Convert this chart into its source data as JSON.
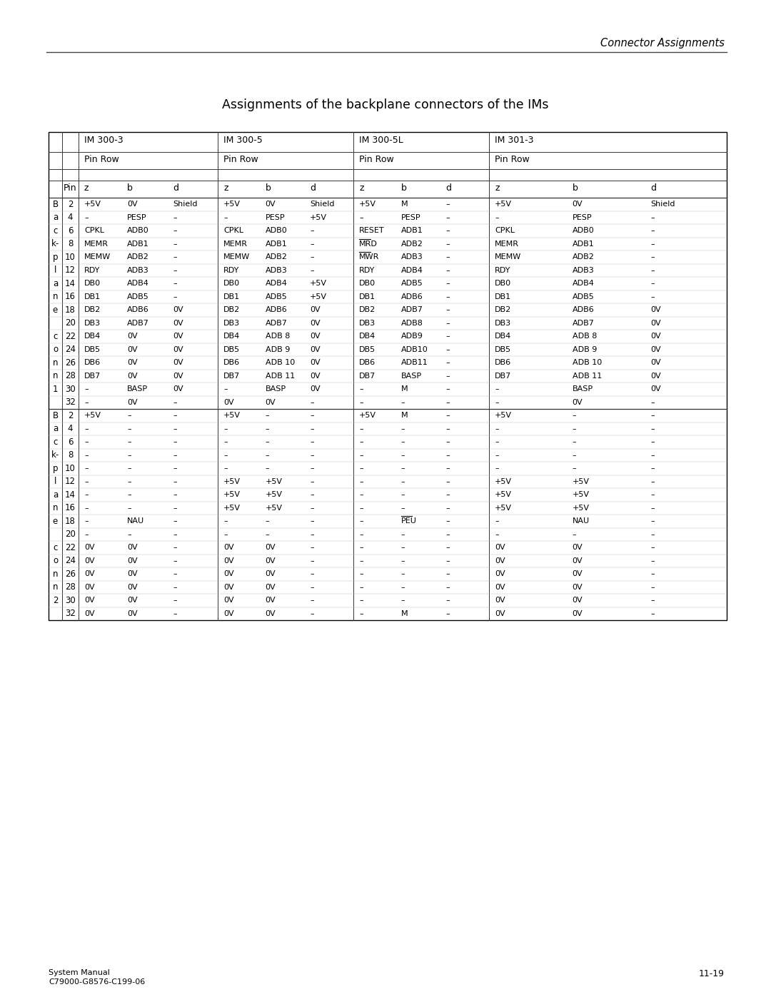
{
  "page_header_right": "Connector Assignments",
  "page_title": "Assignments of the backplane connectors of the IMs",
  "footer_left": "System Manual\nC79000-G8576-C199-06",
  "footer_right": "11-19",
  "im_headers": [
    "IM 300-3",
    "IM 300-5",
    "IM 300-5L",
    "IM 301-3"
  ],
  "pins": [
    2,
    4,
    6,
    8,
    10,
    12,
    14,
    16,
    18,
    20,
    22,
    24,
    26,
    28,
    30,
    32
  ],
  "conn1_left": [
    "B",
    "a",
    "c",
    "k-",
    "p",
    "l",
    "a",
    "n",
    "e",
    "",
    "c",
    "o",
    "n",
    "n",
    "1",
    ""
  ],
  "conn2_left": [
    "B",
    "a",
    "c",
    "k-",
    "p",
    "l",
    "a",
    "n",
    "e",
    "",
    "c",
    "o",
    "n",
    "n",
    "2",
    ""
  ],
  "conn1_data": {
    "IM300_3": {
      "z": [
        "+5V",
        "–",
        "CPKL",
        "MEMR",
        "MEMW",
        "RDY",
        "DB0",
        "DB1",
        "DB2",
        "DB3",
        "DB4",
        "DB5",
        "DB6",
        "DB7",
        "–",
        "–"
      ],
      "b": [
        "0V",
        "PESP",
        "ADB0",
        "ADB1",
        "ADB2",
        "ADB3",
        "ADB4",
        "ADB5",
        "ADB6",
        "ADB7",
        "0V",
        "0V",
        "0V",
        "0V",
        "BASP",
        "0V"
      ],
      "d": [
        "Shield",
        "–",
        "–",
        "–",
        "–",
        "–",
        "–",
        "–",
        "0V",
        "0V",
        "0V",
        "0V",
        "0V",
        "0V",
        "0V",
        "–"
      ]
    },
    "IM300_5": {
      "z": [
        "+5V",
        "–",
        "CPKL",
        "MEMR",
        "MEMW",
        "RDY",
        "DB0",
        "DB1",
        "DB2",
        "DB3",
        "DB4",
        "DB5",
        "DB6",
        "DB7",
        "–",
        "0V"
      ],
      "b": [
        "0V",
        "PESP",
        "ADB0",
        "ADB1",
        "ADB2",
        "ADB3",
        "ADB4",
        "ADB5",
        "ADB6",
        "ADB7",
        "ADB 8",
        "ADB 9",
        "ADB 10",
        "ADB 11",
        "BASP",
        "0V"
      ],
      "d": [
        "Shield",
        "+5V",
        "–",
        "–",
        "–",
        "–",
        "+5V",
        "+5V",
        "0V",
        "0V",
        "0V",
        "0V",
        "0V",
        "0V",
        "0V",
        "–"
      ]
    },
    "IM300_5L": {
      "z": [
        "+5V",
        "–",
        "RESET",
        "MRD",
        "MWR",
        "RDY",
        "DB0",
        "DB1",
        "DB2",
        "DB3",
        "DB4",
        "DB5",
        "DB6",
        "DB7",
        "–",
        "–"
      ],
      "b": [
        "M",
        "PESP",
        "ADB1",
        "ADB2",
        "ADB3",
        "ADB4",
        "ADB5",
        "ADB6",
        "ADB7",
        "ADB8",
        "ADB9",
        "ADB10",
        "ADB11",
        "BASP",
        "M",
        "–"
      ],
      "d": [
        "–",
        "–",
        "–",
        "–",
        "–",
        "–",
        "–",
        "–",
        "–",
        "–",
        "–",
        "–",
        "–",
        "–",
        "–",
        "–"
      ]
    },
    "IM301_3": {
      "z": [
        "+5V",
        "–",
        "CPKL",
        "MEMR",
        "MEMW",
        "RDY",
        "DB0",
        "DB1",
        "DB2",
        "DB3",
        "DB4",
        "DB5",
        "DB6",
        "DB7",
        "–",
        "–"
      ],
      "b": [
        "0V",
        "PESP",
        "ADB0",
        "ADB1",
        "ADB2",
        "ADB3",
        "ADB4",
        "ADB5",
        "ADB6",
        "ADB7",
        "ADB 8",
        "ADB 9",
        "ADB 10",
        "ADB 11",
        "BASP",
        "0V"
      ],
      "d": [
        "Shield",
        "–",
        "–",
        "–",
        "–",
        "–",
        "–",
        "–",
        "0V",
        "0V",
        "0V",
        "0V",
        "0V",
        "0V",
        "0V",
        "–"
      ]
    }
  },
  "conn2_data": {
    "IM300_3": {
      "z": [
        "+5V",
        "–",
        "–",
        "–",
        "–",
        "–",
        "–",
        "–",
        "–",
        "–",
        "0V",
        "0V",
        "0V",
        "0V",
        "0V",
        "0V"
      ],
      "b": [
        "–",
        "–",
        "–",
        "–",
        "–",
        "–",
        "–",
        "–",
        "NAU",
        "–",
        "0V",
        "0V",
        "0V",
        "0V",
        "0V",
        "0V"
      ],
      "d": [
        "–",
        "–",
        "–",
        "–",
        "–",
        "–",
        "–",
        "–",
        "–",
        "–",
        "–",
        "–",
        "–",
        "–",
        "–",
        "–"
      ]
    },
    "IM300_5": {
      "z": [
        "+5V",
        "–",
        "–",
        "–",
        "–",
        "+5V",
        "+5V",
        "+5V",
        "–",
        "–",
        "0V",
        "0V",
        "0V",
        "0V",
        "0V",
        "0V"
      ],
      "b": [
        "–",
        "–",
        "–",
        "–",
        "–",
        "+5V",
        "+5V",
        "+5V",
        "–",
        "–",
        "0V",
        "0V",
        "0V",
        "0V",
        "0V",
        "0V"
      ],
      "d": [
        "–",
        "–",
        "–",
        "–",
        "–",
        "–",
        "–",
        "–",
        "–",
        "–",
        "–",
        "–",
        "–",
        "–",
        "–",
        "–"
      ]
    },
    "IM300_5L": {
      "z": [
        "+5V",
        "–",
        "–",
        "–",
        "–",
        "–",
        "–",
        "–",
        "–",
        "–",
        "–",
        "–",
        "–",
        "–",
        "–",
        "–"
      ],
      "b": [
        "M",
        "–",
        "–",
        "–",
        "–",
        "–",
        "–",
        "–",
        "PEU",
        "–",
        "–",
        "–",
        "–",
        "–",
        "–",
        "M"
      ],
      "d": [
        "–",
        "–",
        "–",
        "–",
        "–",
        "–",
        "–",
        "–",
        "–",
        "–",
        "–",
        "–",
        "–",
        "–",
        "–",
        "–"
      ]
    },
    "IM301_3": {
      "z": [
        "+5V",
        "–",
        "–",
        "–",
        "–",
        "+5V",
        "+5V",
        "+5V",
        "–",
        "–",
        "0V",
        "0V",
        "0V",
        "0V",
        "0V",
        "0V"
      ],
      "b": [
        "–",
        "–",
        "–",
        "–",
        "–",
        "+5V",
        "+5V",
        "+5V",
        "NAU",
        "–",
        "0V",
        "0V",
        "0V",
        "0V",
        "0V",
        "0V"
      ],
      "d": [
        "–",
        "–",
        "–",
        "–",
        "–",
        "–",
        "–",
        "–",
        "–",
        "–",
        "–",
        "–",
        "–",
        "–",
        "–",
        "–"
      ]
    }
  },
  "overline_cells": [
    "MRD",
    "MWR",
    "PEU"
  ],
  "bg_color": "#ffffff",
  "text_color": "#000000"
}
